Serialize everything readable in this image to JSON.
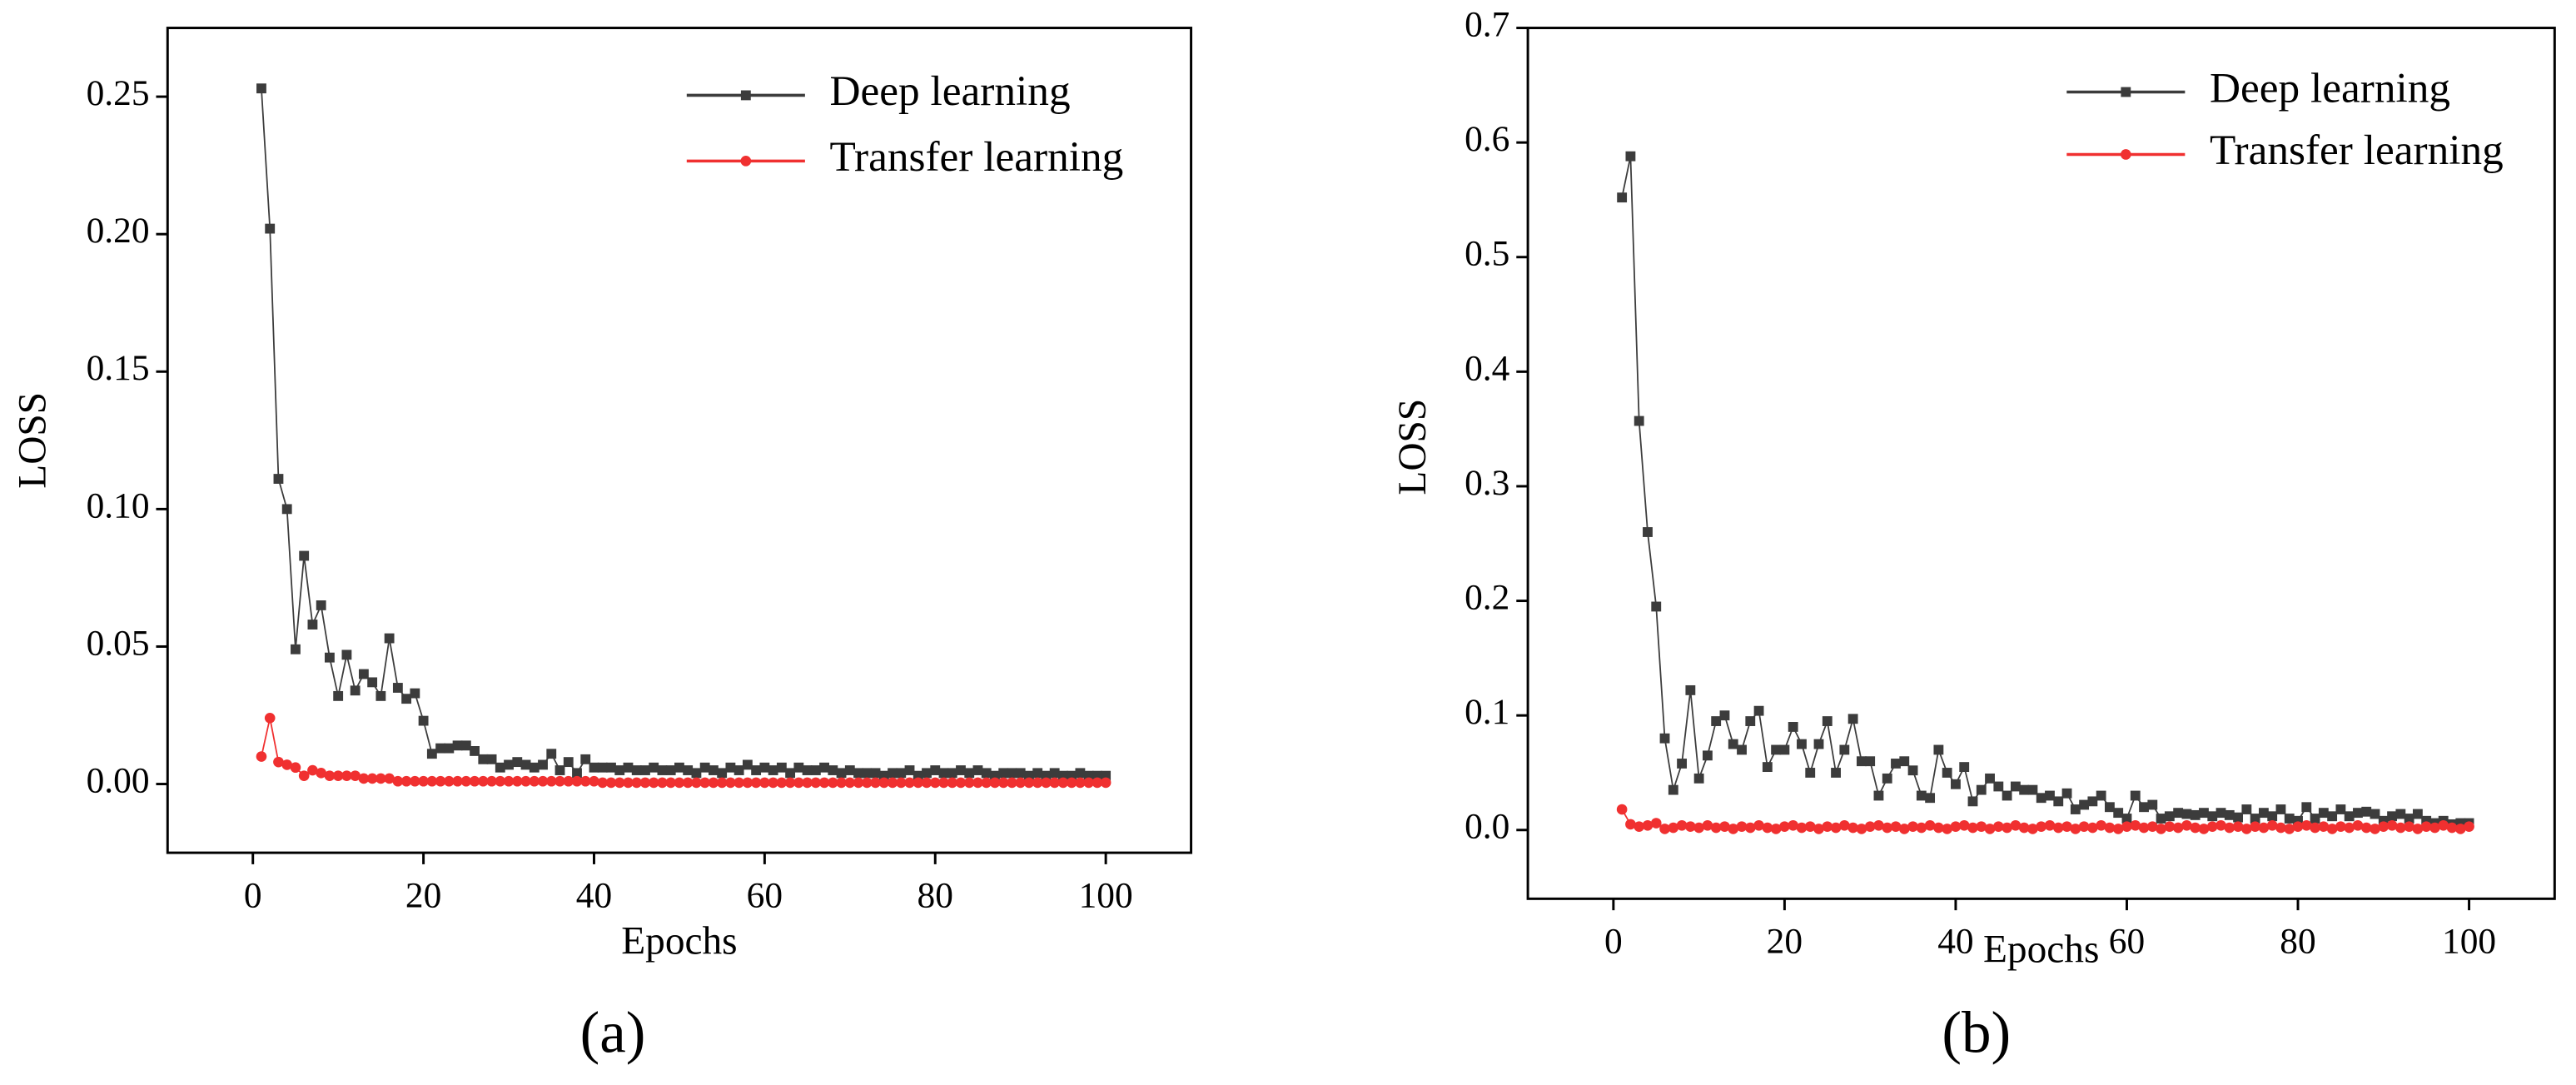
{
  "chart_data": [
    {
      "type": "line",
      "panel_label": "(a)",
      "xlabel": "Epochs",
      "ylabel": "LOSS",
      "xlim": [
        -10,
        110
      ],
      "ylim": [
        -0.025,
        0.275
      ],
      "xticks": [
        0,
        20,
        40,
        60,
        80,
        100
      ],
      "yticks": [
        {
          "value": 0,
          "label": "0.00"
        },
        0.05,
        {
          "value": 0.1,
          "label": "0.10"
        },
        0.15,
        {
          "value": 0.2,
          "label": "0.20"
        },
        0.25
      ],
      "legend": "upper right",
      "x": [
        1,
        2,
        3,
        4,
        5,
        6,
        7,
        8,
        9,
        10,
        11,
        12,
        13,
        14,
        15,
        16,
        17,
        18,
        19,
        20,
        21,
        22,
        23,
        24,
        25,
        26,
        27,
        28,
        29,
        30,
        31,
        32,
        33,
        34,
        35,
        36,
        37,
        38,
        39,
        40,
        41,
        42,
        43,
        44,
        45,
        46,
        47,
        48,
        49,
        50,
        51,
        52,
        53,
        54,
        55,
        56,
        57,
        58,
        59,
        60,
        61,
        62,
        63,
        64,
        65,
        66,
        67,
        68,
        69,
        70,
        71,
        72,
        73,
        74,
        75,
        76,
        77,
        78,
        79,
        80,
        81,
        82,
        83,
        84,
        85,
        86,
        87,
        88,
        89,
        90,
        91,
        92,
        93,
        94,
        95,
        96,
        97,
        98,
        99,
        100
      ],
      "series": [
        {
          "name": "Deep learning",
          "color": "#3c3c3c",
          "marker": "square",
          "values": [
            0.253,
            0.202,
            0.111,
            0.1,
            0.049,
            0.083,
            0.058,
            0.065,
            0.046,
            0.032,
            0.047,
            0.034,
            0.04,
            0.037,
            0.032,
            0.053,
            0.035,
            0.031,
            0.033,
            0.023,
            0.011,
            0.013,
            0.013,
            0.014,
            0.014,
            0.012,
            0.009,
            0.009,
            0.006,
            0.007,
            0.008,
            0.007,
            0.006,
            0.007,
            0.011,
            0.005,
            0.008,
            0.004,
            0.009,
            0.006,
            0.006,
            0.006,
            0.005,
            0.006,
            0.005,
            0.005,
            0.006,
            0.005,
            0.005,
            0.006,
            0.005,
            0.004,
            0.006,
            0.005,
            0.004,
            0.006,
            0.005,
            0.007,
            0.005,
            0.006,
            0.005,
            0.006,
            0.004,
            0.006,
            0.005,
            0.005,
            0.006,
            0.005,
            0.004,
            0.005,
            0.004,
            0.004,
            0.004,
            0.003,
            0.004,
            0.004,
            0.005,
            0.003,
            0.004,
            0.005,
            0.004,
            0.004,
            0.005,
            0.004,
            0.005,
            0.004,
            0.003,
            0.004,
            0.004,
            0.004,
            0.003,
            0.004,
            0.003,
            0.004,
            0.003,
            0.003,
            0.004,
            0.003,
            0.003,
            0.003
          ]
        },
        {
          "name": "Transfer learning",
          "color": "#f03030",
          "marker": "circle",
          "values": [
            0.01,
            0.024,
            0.008,
            0.007,
            0.006,
            0.003,
            0.005,
            0.004,
            0.003,
            0.003,
            0.003,
            0.003,
            0.002,
            0.002,
            0.002,
            0.002,
            0.001,
            0.001,
            0.001,
            0.001,
            0.001,
            0.001,
            0.001,
            0.001,
            0.001,
            0.001,
            0.001,
            0.001,
            0.001,
            0.001,
            0.001,
            0.001,
            0.001,
            0.001,
            0.001,
            0.001,
            0.001,
            0.001,
            0.001,
            0.001,
            0.0005,
            0.0005,
            0.0005,
            0.0005,
            0.0005,
            0.0005,
            0.0005,
            0.0005,
            0.0005,
            0.0005,
            0.0005,
            0.0005,
            0.0005,
            0.0005,
            0.0005,
            0.0005,
            0.0005,
            0.0005,
            0.0005,
            0.0005,
            0.0005,
            0.0005,
            0.0005,
            0.0005,
            0.0005,
            0.0005,
            0.0005,
            0.0005,
            0.0005,
            0.0005,
            0.0005,
            0.0005,
            0.0005,
            0.0005,
            0.0005,
            0.0005,
            0.0005,
            0.0005,
            0.0005,
            0.0005,
            0.0005,
            0.0005,
            0.0005,
            0.0005,
            0.0005,
            0.0005,
            0.0005,
            0.0005,
            0.0005,
            0.0005,
            0.0005,
            0.0005,
            0.0005,
            0.0005,
            0.0005,
            0.0005,
            0.0005,
            0.0005,
            0.0005,
            0.0005
          ]
        }
      ]
    },
    {
      "type": "line",
      "panel_label": "(b)",
      "xlabel": "Epochs",
      "ylabel": "LOSS",
      "xlim": [
        -10,
        110
      ],
      "ylim": [
        -0.06,
        0.7
      ],
      "xticks": [
        0,
        20,
        40,
        60,
        80,
        100
      ],
      "yticks": [
        {
          "value": 0,
          "label": "0.0"
        },
        0.1,
        0.2,
        0.3,
        0.4,
        0.5,
        0.6,
        0.7
      ],
      "legend": "upper right",
      "x": [
        1,
        2,
        3,
        4,
        5,
        6,
        7,
        8,
        9,
        10,
        11,
        12,
        13,
        14,
        15,
        16,
        17,
        18,
        19,
        20,
        21,
        22,
        23,
        24,
        25,
        26,
        27,
        28,
        29,
        30,
        31,
        32,
        33,
        34,
        35,
        36,
        37,
        38,
        39,
        40,
        41,
        42,
        43,
        44,
        45,
        46,
        47,
        48,
        49,
        50,
        51,
        52,
        53,
        54,
        55,
        56,
        57,
        58,
        59,
        60,
        61,
        62,
        63,
        64,
        65,
        66,
        67,
        68,
        69,
        70,
        71,
        72,
        73,
        74,
        75,
        76,
        77,
        78,
        79,
        80,
        81,
        82,
        83,
        84,
        85,
        86,
        87,
        88,
        89,
        90,
        91,
        92,
        93,
        94,
        95,
        96,
        97,
        98,
        99,
        100
      ],
      "series": [
        {
          "name": "Deep learning",
          "color": "#3c3c3c",
          "marker": "square",
          "values": [
            0.552,
            0.588,
            0.357,
            0.26,
            0.195,
            0.08,
            0.035,
            0.058,
            0.122,
            0.045,
            0.065,
            0.095,
            0.1,
            0.075,
            0.07,
            0.095,
            0.104,
            0.055,
            0.07,
            0.07,
            0.09,
            0.075,
            0.05,
            0.075,
            0.095,
            0.05,
            0.07,
            0.097,
            0.06,
            0.06,
            0.03,
            0.045,
            0.058,
            0.06,
            0.052,
            0.03,
            0.028,
            0.07,
            0.05,
            0.04,
            0.055,
            0.025,
            0.035,
            0.045,
            0.038,
            0.03,
            0.038,
            0.035,
            0.035,
            0.028,
            0.03,
            0.025,
            0.032,
            0.018,
            0.022,
            0.025,
            0.03,
            0.02,
            0.015,
            0.01,
            0.03,
            0.02,
            0.022,
            0.01,
            0.012,
            0.015,
            0.014,
            0.013,
            0.015,
            0.012,
            0.015,
            0.013,
            0.011,
            0.018,
            0.01,
            0.015,
            0.012,
            0.018,
            0.01,
            0.008,
            0.02,
            0.01,
            0.015,
            0.012,
            0.018,
            0.012,
            0.015,
            0.016,
            0.014,
            0.008,
            0.012,
            0.014,
            0.01,
            0.014,
            0.008,
            0.006,
            0.008,
            0.005,
            0.006,
            0.006
          ]
        },
        {
          "name": "Transfer learning",
          "color": "#f03030",
          "marker": "circle",
          "values": [
            0.018,
            0.005,
            0.003,
            0.004,
            0.006,
            0.001,
            0.002,
            0.004,
            0.003,
            0.002,
            0.004,
            0.002,
            0.003,
            0.001,
            0.003,
            0.002,
            0.004,
            0.002,
            0.001,
            0.003,
            0.004,
            0.002,
            0.003,
            0.001,
            0.003,
            0.002,
            0.004,
            0.002,
            0.001,
            0.003,
            0.004,
            0.002,
            0.003,
            0.001,
            0.003,
            0.002,
            0.004,
            0.002,
            0.001,
            0.003,
            0.004,
            0.002,
            0.003,
            0.001,
            0.003,
            0.002,
            0.004,
            0.002,
            0.001,
            0.003,
            0.004,
            0.002,
            0.003,
            0.001,
            0.003,
            0.002,
            0.004,
            0.002,
            0.001,
            0.003,
            0.004,
            0.002,
            0.003,
            0.001,
            0.003,
            0.002,
            0.004,
            0.002,
            0.001,
            0.003,
            0.004,
            0.002,
            0.003,
            0.001,
            0.003,
            0.002,
            0.004,
            0.002,
            0.001,
            0.003,
            0.004,
            0.002,
            0.003,
            0.001,
            0.003,
            0.002,
            0.004,
            0.002,
            0.001,
            0.003,
            0.004,
            0.002,
            0.003,
            0.001,
            0.003,
            0.002,
            0.004,
            0.002,
            0.001,
            0.003
          ]
        }
      ]
    }
  ]
}
